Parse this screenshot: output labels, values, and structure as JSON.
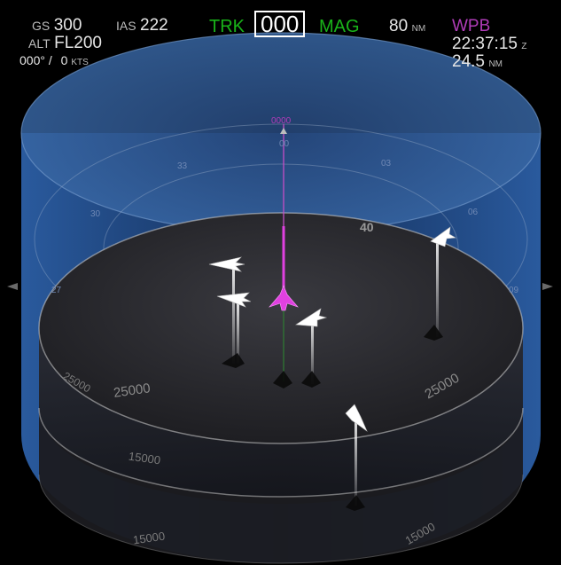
{
  "hud": {
    "gs_label": "GS",
    "gs_value": "300",
    "ias_label": "IAS",
    "ias_value": "222",
    "alt_label": "ALT",
    "alt_value": "FL200",
    "wind_dir": "000°",
    "wind_sep": "/",
    "wind_speed": "0",
    "wind_unit": "KTS",
    "trk_label": "TRK",
    "trk_value": "000",
    "mag_label": "MAG",
    "range_value": "80",
    "range_unit": "NM",
    "waypoint_name": "WPB",
    "eta_time": "22:37:15",
    "eta_zone": "Z",
    "waypoint_dist": "24.5",
    "waypoint_dist_unit": "NM"
  },
  "display": {
    "heading_bug_label": "0000",
    "range_ring_label": "40",
    "compass_labels": [
      "33",
      "30",
      "27",
      "03",
      "06",
      "09",
      "00"
    ],
    "alt_labels_upper": [
      "25000",
      "25000",
      "25000"
    ],
    "alt_labels_lower": [
      "15000",
      "15000",
      "15000"
    ],
    "colors": {
      "ownship": "#e040e0",
      "traffic": "#ffffff",
      "cylinder": "#2b5a9a",
      "waypoint": "#b03cb8",
      "trk": "#19b319"
    }
  }
}
